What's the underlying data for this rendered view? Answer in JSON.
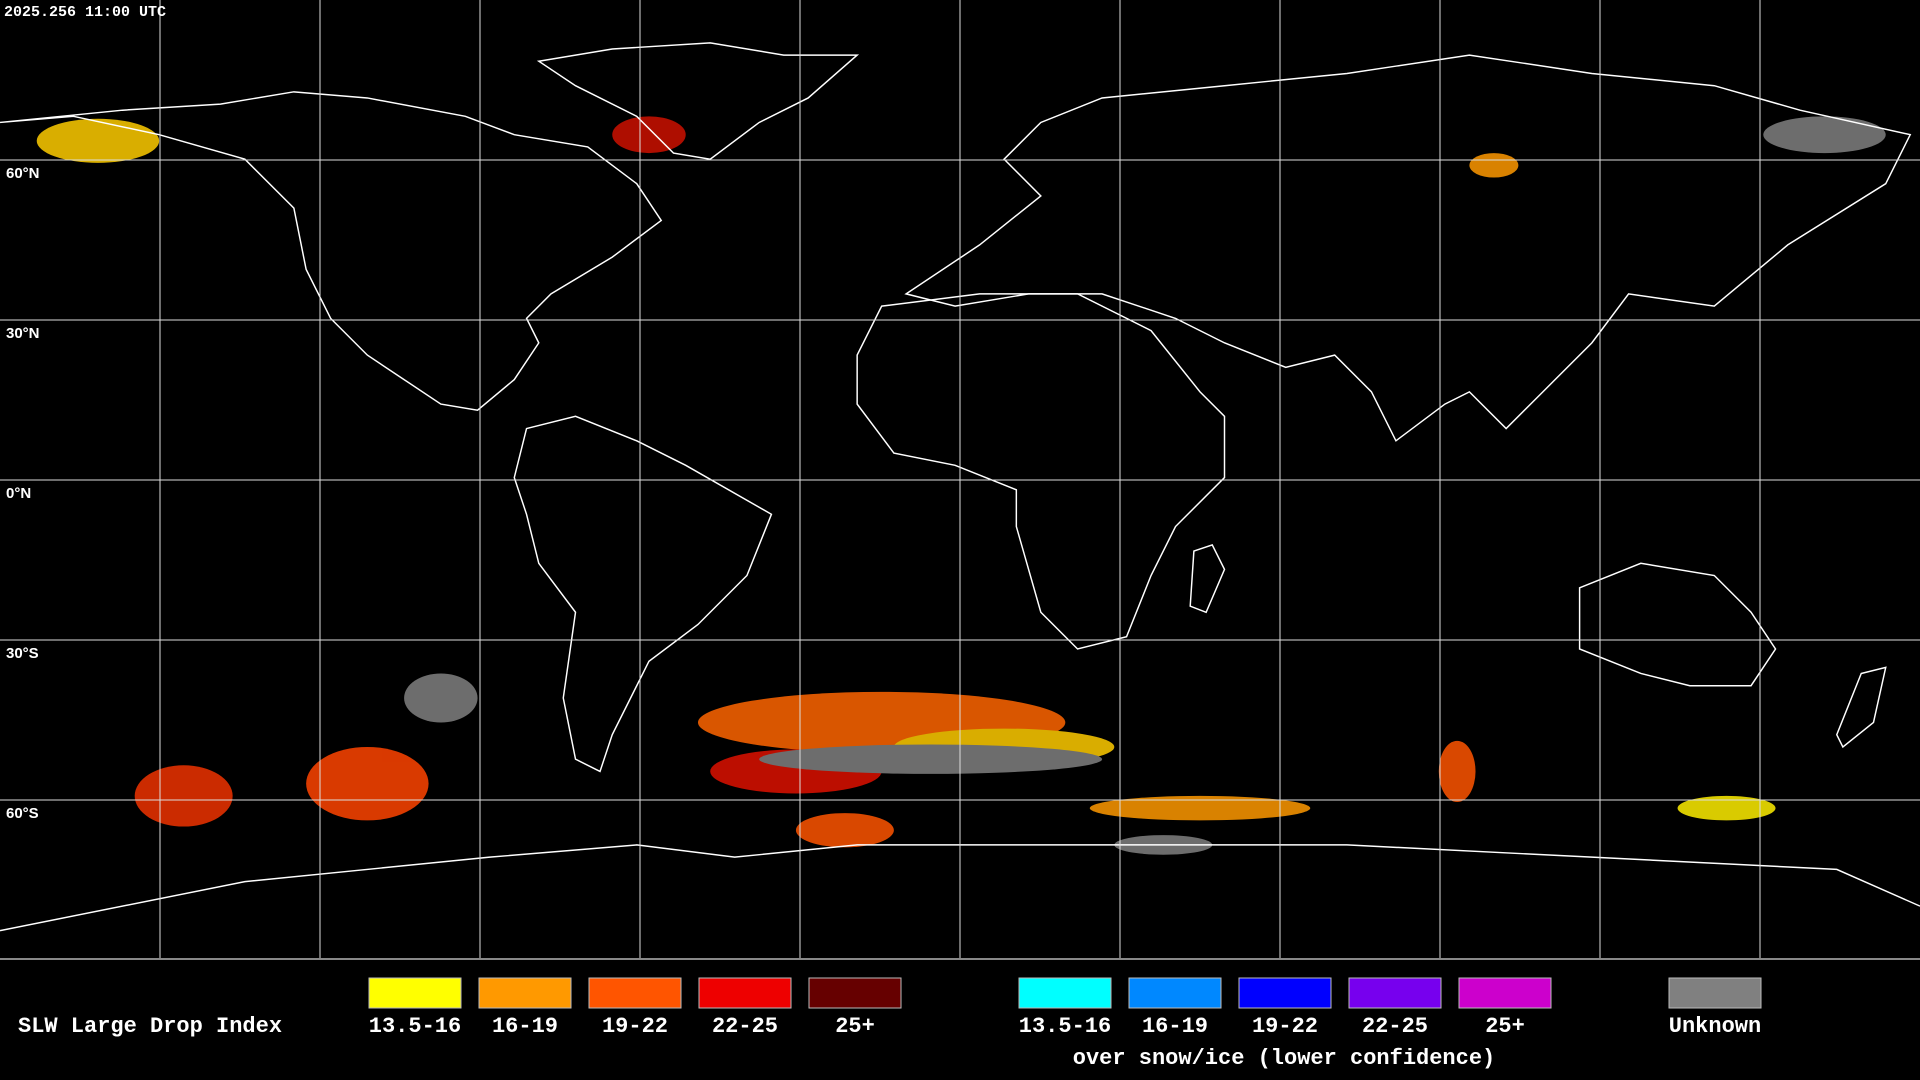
{
  "header": {
    "timestamp": "2025.256 11:00 UTC"
  },
  "map": {
    "latitude_labels": [
      "60°N",
      "30°N",
      "0°N",
      "30°S",
      "60°S"
    ]
  },
  "legend": {
    "title": "SLW Large Drop Index",
    "categories": [
      {
        "label": "13.5-16",
        "color": "#ffff00"
      },
      {
        "label": "16-19",
        "color": "#ff9900"
      },
      {
        "label": "19-22",
        "color": "#ff5500"
      },
      {
        "label": "22-25",
        "color": "#ee0000"
      },
      {
        "label": "25+",
        "color": "#660000"
      }
    ],
    "snow_ice_categories": [
      {
        "label": "13.5-16",
        "color": "#00ffff"
      },
      {
        "label": "16-19",
        "color": "#0088ff"
      },
      {
        "label": "19-22",
        "color": "#0000ff"
      },
      {
        "label": "22-25",
        "color": "#7700ee"
      },
      {
        "label": "25+",
        "color": "#cc00cc"
      }
    ],
    "snow_ice_note": "over snow/ice (lower confidence)",
    "unknown": {
      "label": "Unknown",
      "color": "#808080"
    }
  }
}
